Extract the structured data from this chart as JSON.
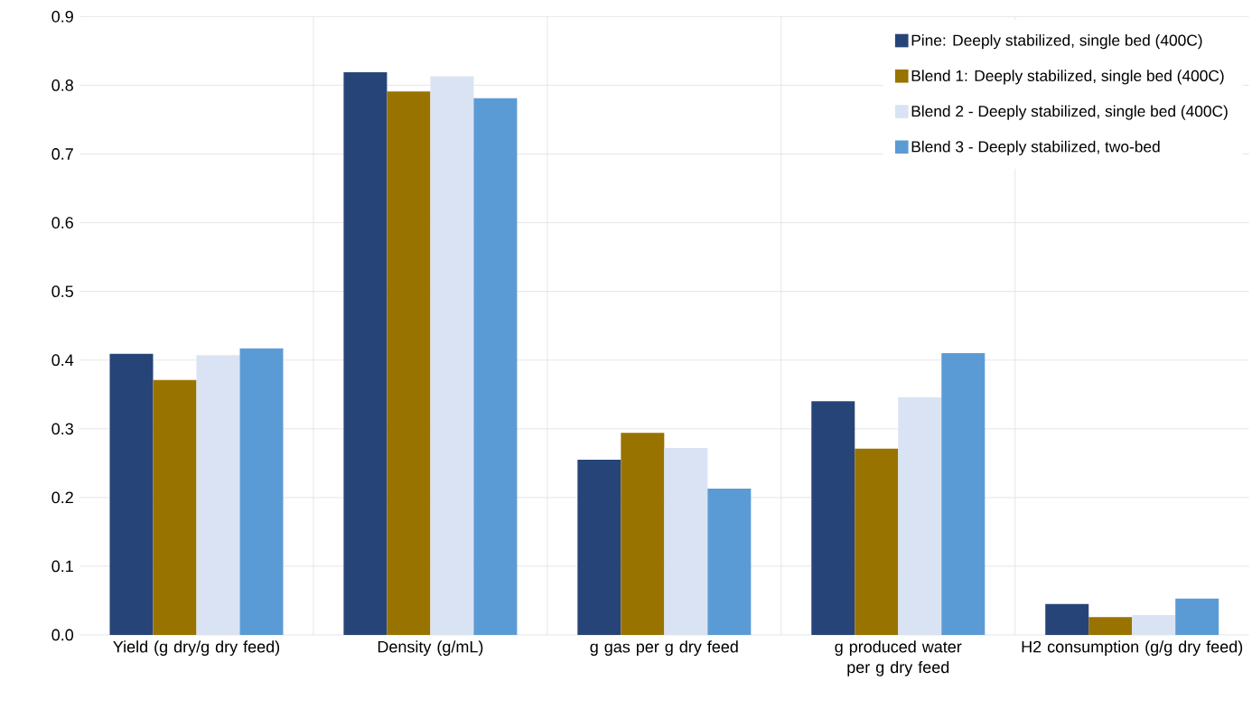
{
  "chart_data": {
    "type": "bar",
    "categories": [
      "Yield (g dry/g dry feed)",
      "Density (g/mL)",
      "g gas per g dry feed",
      "g produced water per g dry feed",
      "H2 consumption (g/g dry feed)"
    ],
    "series": [
      {
        "name": "Pine: Deeply stabilized, single bed (400C)",
        "color": "#264478",
        "values": [
          0.409,
          0.819,
          0.255,
          0.34,
          0.045
        ]
      },
      {
        "name": "Blend 1: Deeply stabilized, single bed (400C)",
        "color": "#997300",
        "values": [
          0.371,
          0.791,
          0.294,
          0.271,
          0.026
        ]
      },
      {
        "name": "Blend 2 - Deeply stabilized, single bed (400C)",
        "color": "#dae3f3",
        "values": [
          0.407,
          0.813,
          0.272,
          0.346,
          0.029
        ]
      },
      {
        "name": "Blend 3 - Deeply stabilized, two-bed",
        "color": "#5b9bd5",
        "values": [
          0.417,
          0.781,
          0.213,
          0.41,
          0.053
        ]
      }
    ],
    "ylim": [
      0,
      0.9
    ],
    "yticks": [
      {
        "value": 0,
        "label": "0.0"
      },
      0.1,
      0.2,
      0.3,
      0.4,
      0.5,
      0.6,
      0.7,
      0.8,
      0.9
    ],
    "grid": true,
    "legend": "top right"
  }
}
